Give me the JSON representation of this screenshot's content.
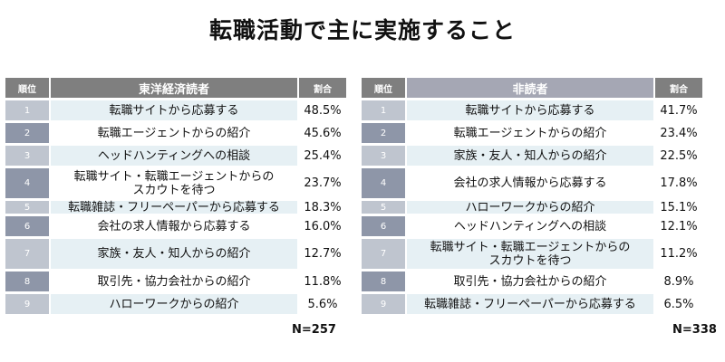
{
  "title": "転職活動で主に実施すること",
  "headers": {
    "rank": "順位",
    "pct": "割合"
  },
  "tables": [
    {
      "group": "東洋経済読者",
      "n": "N=257",
      "rows": [
        {
          "rank": "1",
          "item": [
            "転職サイトから応募する"
          ],
          "pct": "48.5%"
        },
        {
          "rank": "2",
          "item": [
            "転職エージェントからの紹介"
          ],
          "pct": "45.6%"
        },
        {
          "rank": "3",
          "item": [
            "ヘッドハンティングへの相談"
          ],
          "pct": "25.4%"
        },
        {
          "rank": "4",
          "item": [
            "転職サイト・転職エージェントからの",
            "スカウトを待つ"
          ],
          "pct": "23.7%"
        },
        {
          "rank": "5",
          "item": [
            "転職雑誌・フリーペーパーから応募する"
          ],
          "pct": "18.3%"
        },
        {
          "rank": "6",
          "item": [
            "会社の求人情報から応募する"
          ],
          "pct": "16.0%"
        },
        {
          "rank": "7",
          "item": [
            "家族・友人・知人からの紹介"
          ],
          "pct": "12.7%"
        },
        {
          "rank": "8",
          "item": [
            "取引先・協力会社からの紹介"
          ],
          "pct": "11.8%"
        },
        {
          "rank": "9",
          "item": [
            "ハローワークからの紹介"
          ],
          "pct": "5.6%"
        }
      ]
    },
    {
      "group": "非読者",
      "n": "N=338",
      "rows": [
        {
          "rank": "1",
          "item": [
            "転職サイトから応募する"
          ],
          "pct": "41.7%"
        },
        {
          "rank": "2",
          "item": [
            "転職エージェントからの紹介"
          ],
          "pct": "23.4%"
        },
        {
          "rank": "3",
          "item": [
            "家族・友人・知人からの紹介"
          ],
          "pct": "22.5%"
        },
        {
          "rank": "4",
          "item": [
            "会社の求人情報から応募する"
          ],
          "pct": "17.8%"
        },
        {
          "rank": "5",
          "item": [
            "ハローワークからの紹介"
          ],
          "pct": "15.1%"
        },
        {
          "rank": "6",
          "item": [
            "ヘッドハンティングへの相談"
          ],
          "pct": "12.1%"
        },
        {
          "rank": "7",
          "item": [
            "転職サイト・転職エージェントからの",
            "スカウトを待つ"
          ],
          "pct": "11.2%"
        },
        {
          "rank": "8",
          "item": [
            "取引先・協力会社からの紹介"
          ],
          "pct": "8.9%"
        },
        {
          "rank": "9",
          "item": [
            "転職雑誌・フリーペーパーから応募する"
          ],
          "pct": "6.5%"
        }
      ]
    }
  ]
}
